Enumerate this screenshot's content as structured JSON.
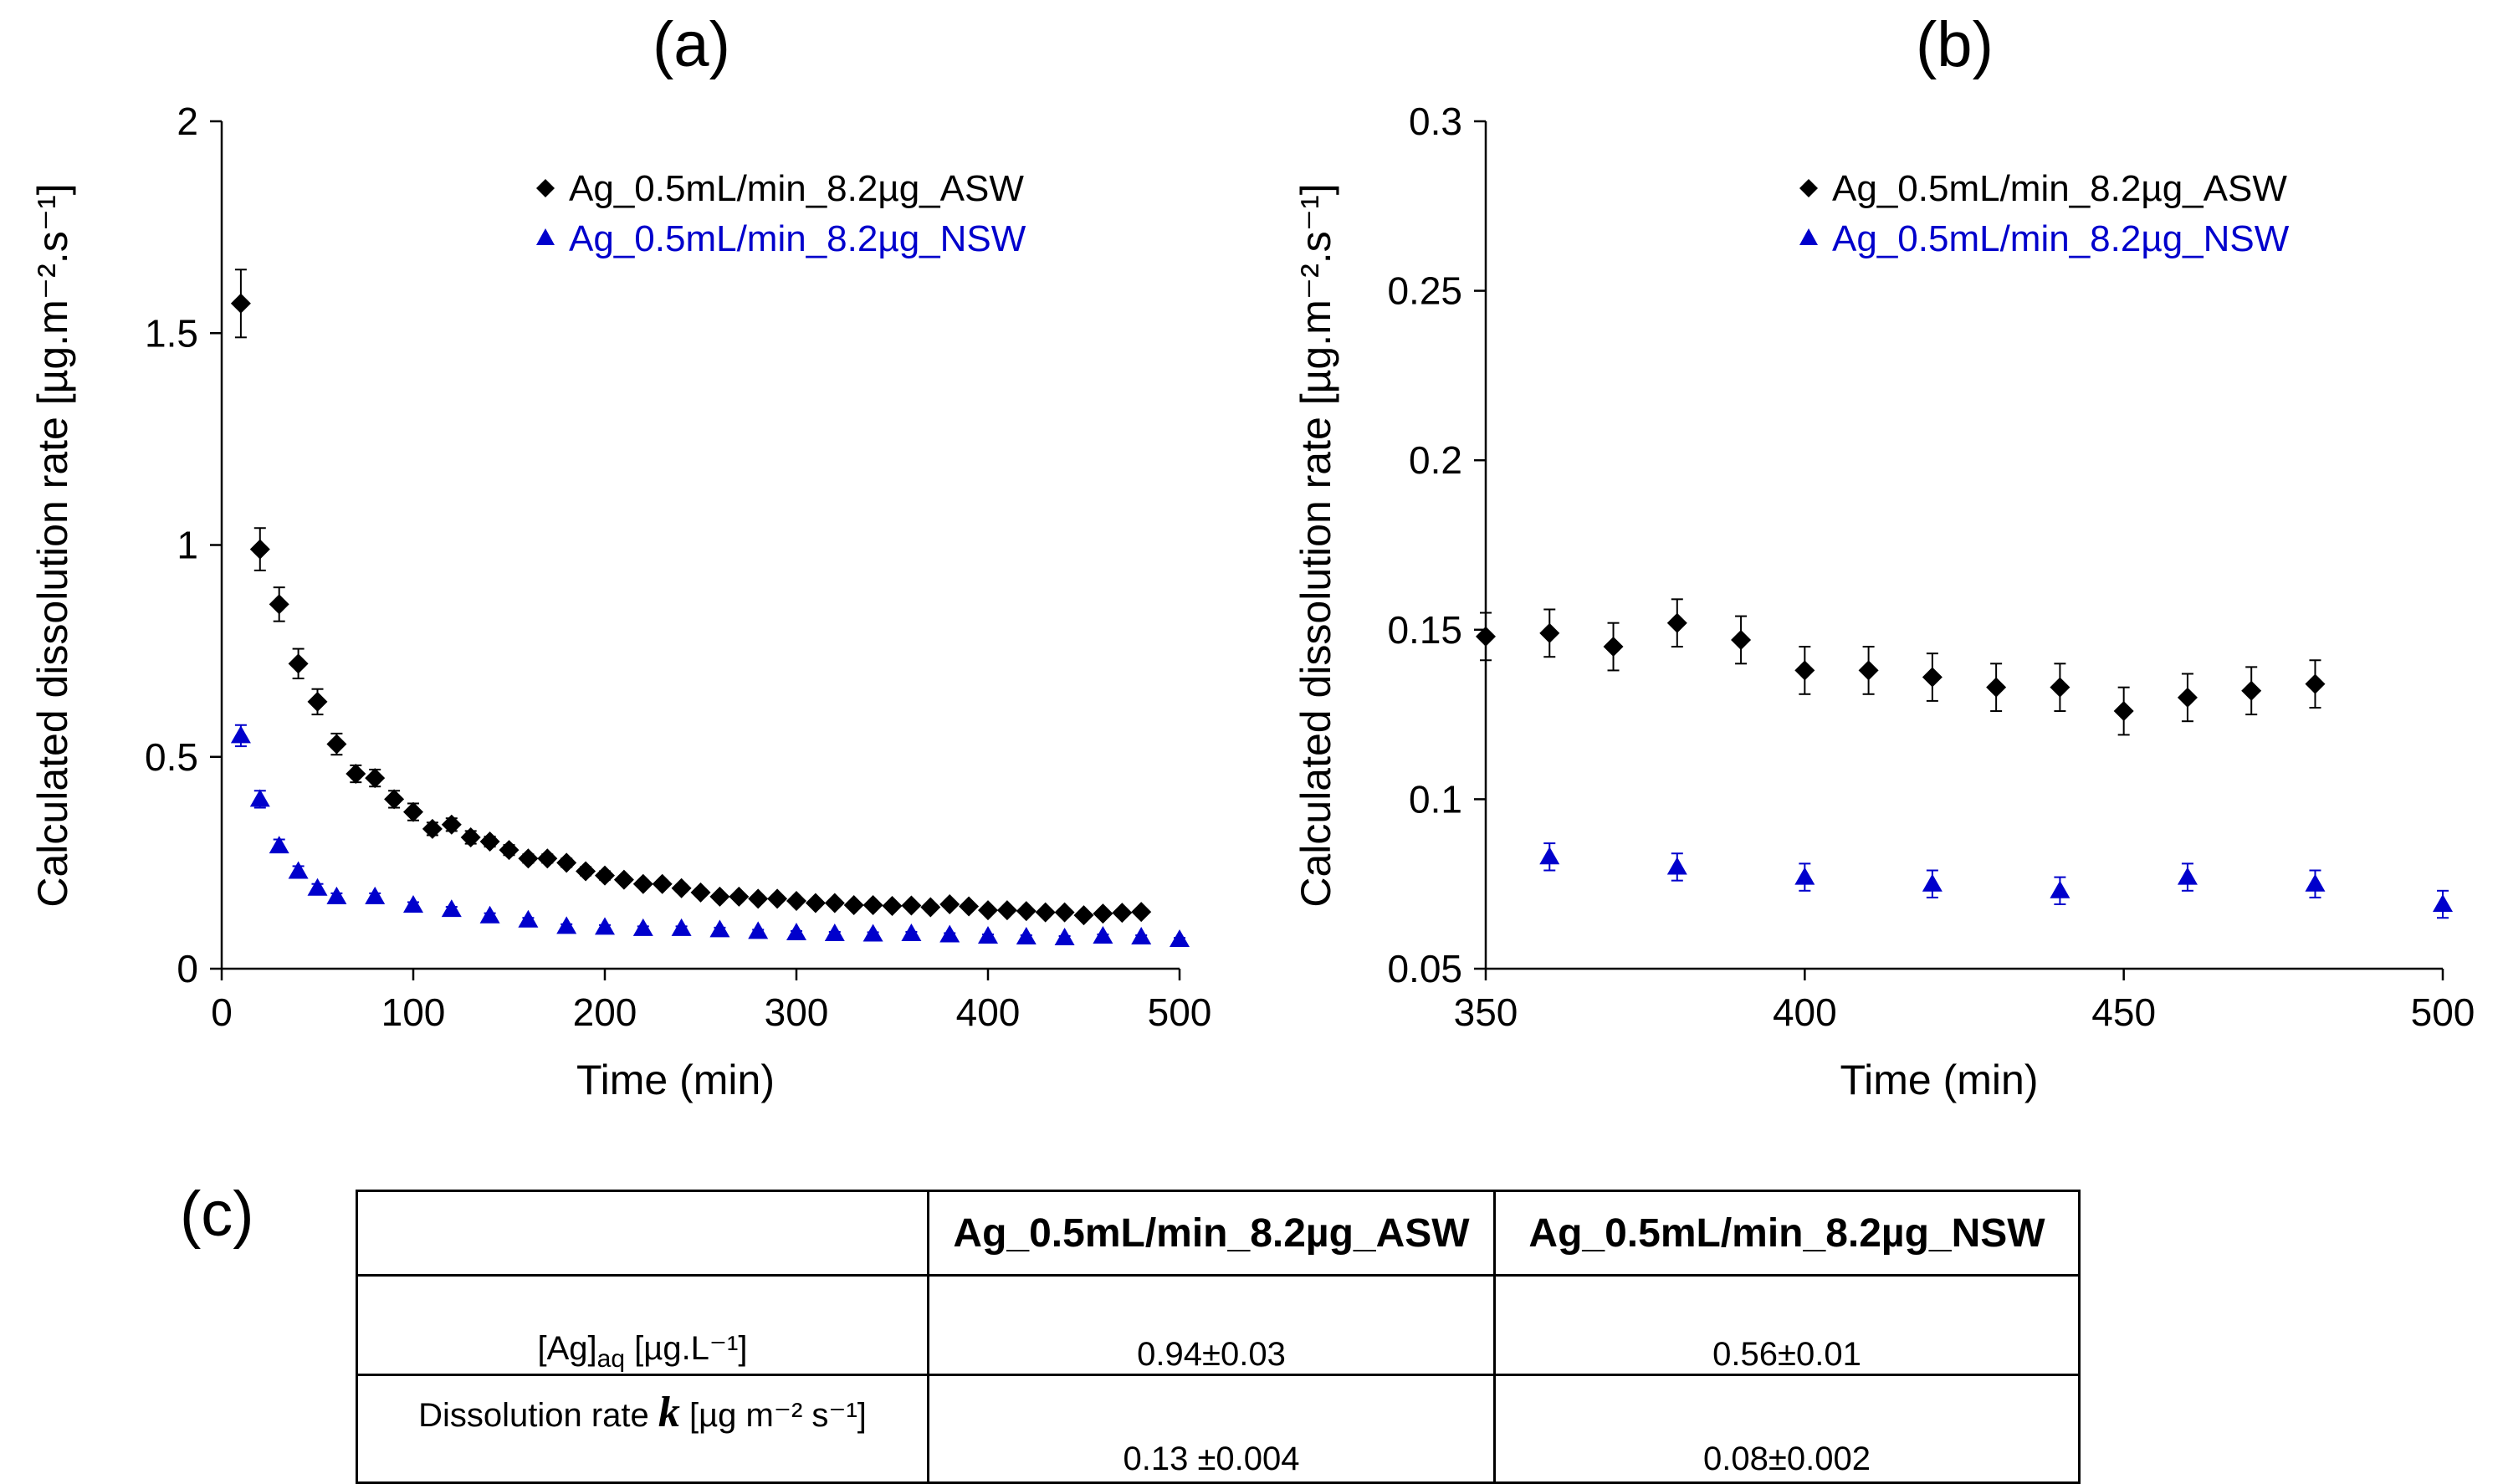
{
  "panels": {
    "a": "(a)",
    "b": "(b)",
    "c": "(c)"
  },
  "chart_data": [
    {
      "type": "scatter",
      "title": "(a)",
      "xlabel": "Time (min)",
      "ylabel": "Calculated dissolution rate [µg.m⁻².s⁻¹]",
      "xlim": [
        0,
        500
      ],
      "ylim": [
        0,
        2
      ],
      "xticks": [
        "0",
        "100",
        "200",
        "300",
        "400",
        "500"
      ],
      "yticks": [
        "0",
        "0.5",
        "1",
        "1.5",
        "2"
      ],
      "legend_position": "top-right",
      "series": [
        {
          "name": "Ag_0.5mL/min_8.2µg_ASW",
          "marker": "diamond",
          "color": "#000000",
          "x": [
            10,
            20,
            30,
            40,
            50,
            60,
            70,
            80,
            90,
            100,
            110,
            120,
            130,
            140,
            150,
            160,
            170,
            180,
            190,
            200,
            210,
            220,
            230,
            240,
            250,
            260,
            270,
            280,
            290,
            300,
            310,
            320,
            330,
            340,
            350,
            360,
            370,
            380,
            390,
            400,
            410,
            420,
            430,
            440,
            450,
            460,
            470,
            480
          ],
          "values": [
            1.57,
            0.99,
            0.86,
            0.72,
            0.63,
            0.53,
            0.46,
            0.45,
            0.4,
            0.37,
            0.33,
            0.34,
            0.31,
            0.3,
            0.28,
            0.26,
            0.26,
            0.25,
            0.23,
            0.22,
            0.21,
            0.2,
            0.2,
            0.19,
            0.18,
            0.17,
            0.17,
            0.165,
            0.165,
            0.16,
            0.155,
            0.155,
            0.15,
            0.15,
            0.148,
            0.149,
            0.145,
            0.152,
            0.147,
            0.138,
            0.138,
            0.136,
            0.133,
            0.133,
            0.126,
            0.13,
            0.132,
            0.134
          ],
          "errors": [
            0.08,
            0.05,
            0.04,
            0.035,
            0.03,
            0.025,
            0.02,
            0.02,
            0.02,
            0.02,
            0.015,
            0.015,
            0.015,
            0.012,
            0.012,
            0.01,
            0.01,
            0.01,
            0.01,
            0.01,
            0.008,
            0.008,
            0.008,
            0.008,
            0.008,
            0.008,
            0.007,
            0.007,
            0.007,
            0.007,
            0.007,
            0.007,
            0.007,
            0.007,
            0.007,
            0.007,
            0.007,
            0.007,
            0.007,
            0.007,
            0.007,
            0.007,
            0.007,
            0.007,
            0.007,
            0.007,
            0.007,
            0.007
          ]
        },
        {
          "name": "Ag_0.5mL/min_8.2µg_NSW",
          "marker": "triangle",
          "color": "#0000cc",
          "x": [
            10,
            20,
            30,
            40,
            50,
            60,
            80,
            100,
            120,
            140,
            160,
            180,
            200,
            220,
            240,
            260,
            280,
            300,
            320,
            340,
            360,
            380,
            400,
            420,
            440,
            460,
            480,
            500
          ],
          "values": [
            0.55,
            0.4,
            0.29,
            0.23,
            0.19,
            0.17,
            0.17,
            0.15,
            0.14,
            0.125,
            0.115,
            0.1,
            0.098,
            0.095,
            0.095,
            0.092,
            0.088,
            0.085,
            0.083,
            0.082,
            0.083,
            0.08,
            0.077,
            0.075,
            0.073,
            0.077,
            0.075,
            0.069
          ],
          "errors": [
            0.025,
            0.02,
            0.015,
            0.012,
            0.01,
            0.008,
            0.008,
            0.007,
            0.006,
            0.006,
            0.005,
            0.005,
            0.005,
            0.005,
            0.005,
            0.005,
            0.004,
            0.004,
            0.004,
            0.004,
            0.004,
            0.004,
            0.004,
            0.004,
            0.004,
            0.004,
            0.004,
            0.004
          ]
        }
      ]
    },
    {
      "type": "scatter",
      "title": "(b)",
      "xlabel": "Time (min)",
      "ylabel": "Calculated dissolution rate [µg.m⁻².s⁻¹]",
      "xlim": [
        350,
        500
      ],
      "ylim": [
        0.05,
        0.3
      ],
      "xticks": [
        "350",
        "400",
        "450",
        "500"
      ],
      "yticks": [
        "0.05",
        "0.1",
        "0.15",
        "0.2",
        "0.25",
        "0.3"
      ],
      "legend_position": "top-right",
      "series": [
        {
          "name": "Ag_0.5mL/min_8.2µg_ASW",
          "marker": "diamond",
          "color": "#000000",
          "x": [
            350,
            360,
            370,
            380,
            390,
            400,
            410,
            420,
            430,
            440,
            450,
            460,
            470,
            480
          ],
          "values": [
            0.148,
            0.149,
            0.145,
            0.152,
            0.147,
            0.138,
            0.138,
            0.136,
            0.133,
            0.133,
            0.126,
            0.13,
            0.132,
            0.134
          ],
          "errors": [
            0.007,
            0.007,
            0.007,
            0.007,
            0.007,
            0.007,
            0.007,
            0.007,
            0.007,
            0.007,
            0.007,
            0.007,
            0.007,
            0.007
          ]
        },
        {
          "name": "Ag_0.5mL/min_8.2µg_NSW",
          "marker": "triangle",
          "color": "#0000cc",
          "x": [
            360,
            380,
            400,
            420,
            440,
            460,
            480,
            500
          ],
          "values": [
            0.083,
            0.08,
            0.077,
            0.075,
            0.073,
            0.077,
            0.075,
            0.069
          ],
          "errors": [
            0.004,
            0.004,
            0.004,
            0.004,
            0.004,
            0.004,
            0.004,
            0.004
          ]
        }
      ]
    }
  ],
  "table": {
    "headers": [
      "",
      "Ag_0.5mL/min_8.2µg_ASW",
      "Ag_0.5mL/min_8.2µg_NSW"
    ],
    "row_ag": {
      "label_prefix": "[Ag]",
      "label_sub": "aq",
      "label_suffix": " [µg.L⁻¹]",
      "asw": "0.94±0.03",
      "nsw": "0.56±0.01"
    },
    "row_k": {
      "label_prefix": "Dissolution rate ",
      "label_symbol": "k",
      "label_suffix": "  [µg m⁻² s⁻¹]",
      "asw": "0.13 ±0.004",
      "nsw": "0.08±0.002"
    }
  }
}
